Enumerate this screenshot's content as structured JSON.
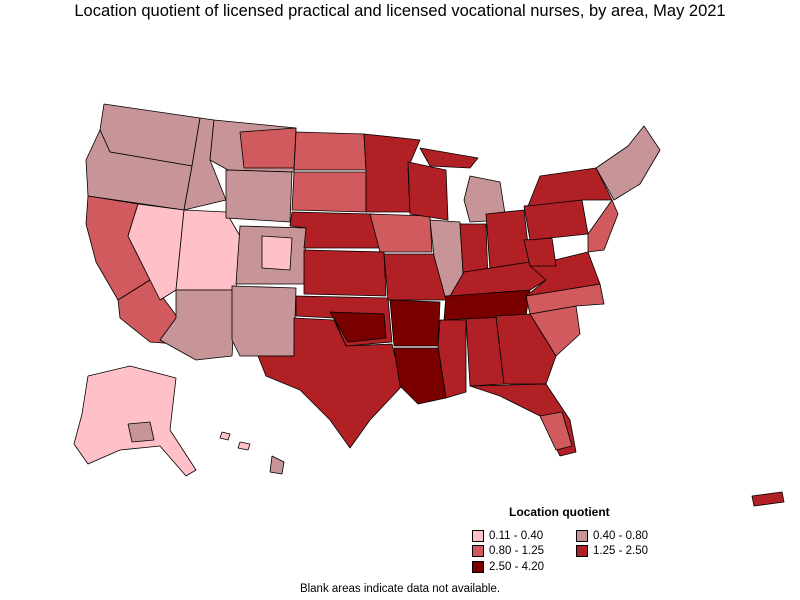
{
  "title": "Location quotient of licensed practical and licensed vocational nurses, by area, May 2021",
  "legend": {
    "title": "Location quotient",
    "items": [
      {
        "label": "0.11 - 0.40",
        "color": "#ffc0c8"
      },
      {
        "label": "0.40 - 0.80",
        "color": "#c79497"
      },
      {
        "label": "0.80 - 1.25",
        "color": "#d05a5e"
      },
      {
        "label": "1.25 - 2.50",
        "color": "#b02025"
      },
      {
        "label": "2.50 - 4.20",
        "color": "#7a0000"
      }
    ]
  },
  "footnote": "Blank areas indicate data not available.",
  "colors": {
    "outline": "#000000",
    "background": "#ffffff"
  }
}
